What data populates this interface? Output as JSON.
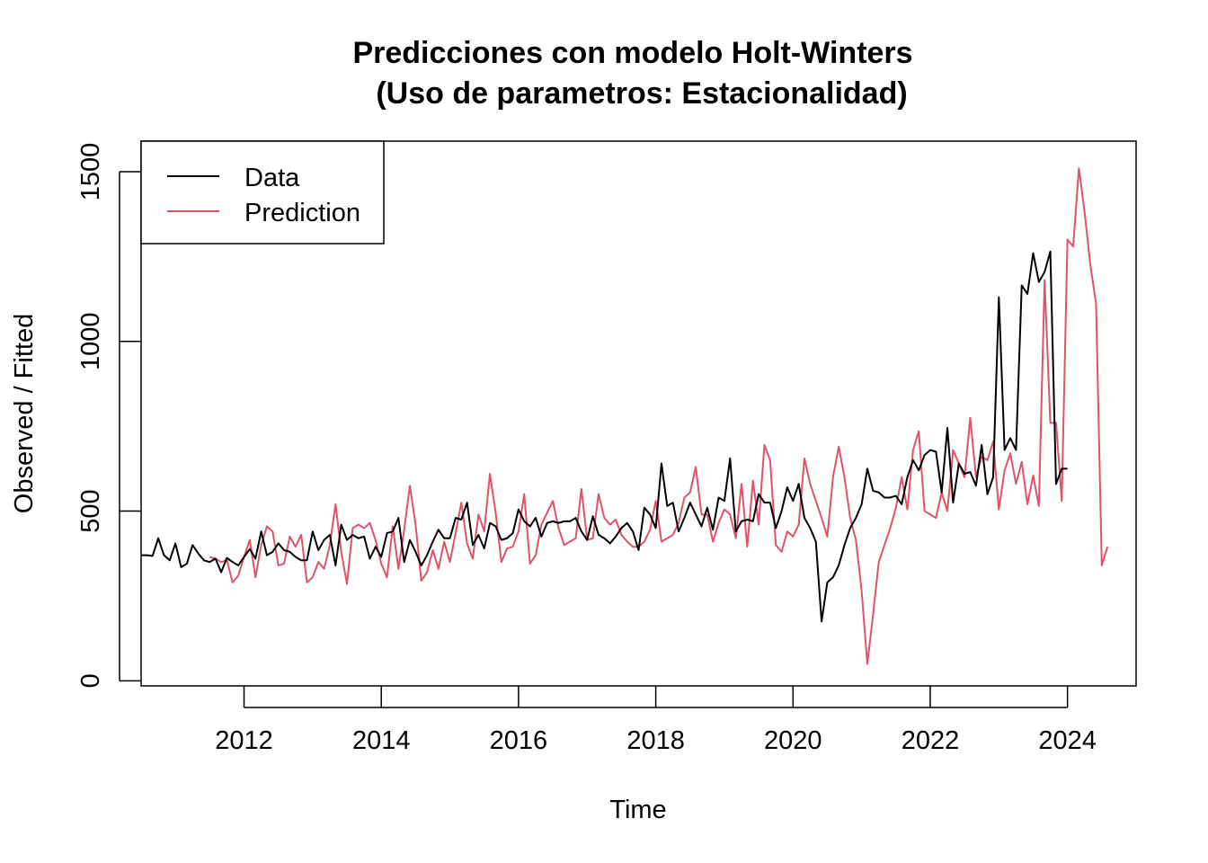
{
  "chart_data": {
    "type": "line",
    "title_line1": "Predicciones con modelo Holt-Winters",
    "title_line2": "(Uso de parametros: Estacionalidad)",
    "xlabel": "Time",
    "ylabel": "Observed / Fitted",
    "xlim": [
      2010.5,
      2025.0
    ],
    "ylim": [
      -15,
      1590
    ],
    "x_ticks": [
      2012,
      2014,
      2016,
      2018,
      2020,
      2022,
      2024
    ],
    "y_ticks": [
      0,
      500,
      1000,
      1500
    ],
    "legend_position": "top-left",
    "colors": {
      "data": "#000000",
      "prediction": "#DF536B"
    },
    "data_start": 2010.5,
    "step": 0.0833333,
    "series": [
      {
        "name": "Data",
        "start": 2010.5,
        "values": [
          370,
          370,
          368,
          420,
          370,
          355,
          405,
          335,
          345,
          400,
          375,
          355,
          350,
          360,
          320,
          362,
          350,
          340,
          365,
          388,
          360,
          440,
          370,
          380,
          405,
          385,
          380,
          365,
          355,
          355,
          440,
          385,
          415,
          430,
          340,
          460,
          415,
          430,
          420,
          425,
          360,
          395,
          365,
          435,
          440,
          480,
          350,
          415,
          380,
          340,
          370,
          410,
          445,
          420,
          420,
          480,
          475,
          525,
          400,
          430,
          390,
          465,
          455,
          415,
          420,
          435,
          505,
          470,
          455,
          480,
          425,
          465,
          470,
          465,
          470,
          470,
          480,
          440,
          415,
          485,
          430,
          420,
          405,
          425,
          450,
          465,
          440,
          385,
          510,
          490,
          450,
          640,
          515,
          525,
          440,
          480,
          525,
          490,
          455,
          510,
          445,
          540,
          530,
          655,
          440,
          470,
          475,
          470,
          550,
          525,
          525,
          450,
          500,
          570,
          530,
          580,
          480,
          450,
          410,
          175,
          290,
          305,
          340,
          400,
          450,
          480,
          520,
          625,
          560,
          555,
          540,
          540,
          545,
          520,
          600,
          650,
          620,
          665,
          680,
          675,
          555,
          745,
          525,
          640,
          610,
          615,
          575,
          695,
          550,
          600,
          1130,
          680,
          715,
          680,
          1165,
          1140,
          1260,
          1175,
          1205,
          1265,
          580,
          625,
          625
        ]
      },
      {
        "name": "Prediction",
        "start": 2011.5,
        "values": [
          365,
          360,
          350,
          355,
          290,
          310,
          365,
          415,
          305,
          400,
          455,
          440,
          340,
          345,
          425,
          395,
          430,
          290,
          305,
          350,
          330,
          400,
          520,
          380,
          285,
          450,
          460,
          450,
          465,
          415,
          345,
          305,
          455,
          330,
          445,
          575,
          460,
          295,
          320,
          385,
          330,
          410,
          350,
          435,
          525,
          405,
          360,
          490,
          440,
          610,
          495,
          350,
          390,
          395,
          440,
          550,
          345,
          370,
          460,
          495,
          530,
          450,
          400,
          410,
          420,
          565,
          415,
          420,
          550,
          480,
          460,
          475,
          430,
          410,
          395,
          395,
          410,
          445,
          530,
          410,
          420,
          430,
          465,
          540,
          555,
          630,
          490,
          490,
          410,
          465,
          505,
          490,
          420,
          580,
          395,
          590,
          460,
          695,
          650,
          400,
          380,
          440,
          425,
          460,
          655,
          580,
          530,
          480,
          425,
          600,
          690,
          600,
          480,
          415,
          265,
          50,
          195,
          350,
          400,
          450,
          510,
          600,
          505,
          680,
          735,
          500,
          490,
          480,
          555,
          500,
          680,
          640,
          600,
          775,
          600,
          660,
          650,
          705,
          505,
          620,
          670,
          580,
          645,
          520,
          605,
          515,
          1180,
          760,
          760,
          530,
          1300,
          1280,
          1510,
          1380,
          1225,
          1110,
          340,
          395
        ]
      }
    ]
  }
}
